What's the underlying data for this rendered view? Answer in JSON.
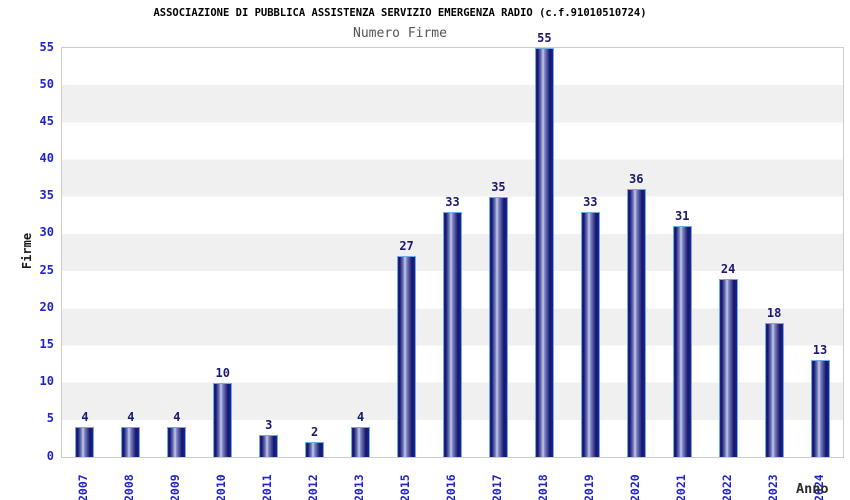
{
  "chart_data": {
    "type": "bar",
    "title": "ASSOCIAZIONE DI PUBBLICA ASSISTENZA SERVIZIO EMERGENZA RADIO (c.f.91010510724)",
    "subtitle": "Numero Firme",
    "xlabel": "Anno",
    "ylabel": "Firme",
    "categories": [
      "2007",
      "2008",
      "2009",
      "2010",
      "2011",
      "2012",
      "2013",
      "2015",
      "2016",
      "2017",
      "2018",
      "2019",
      "2020",
      "2021",
      "2022",
      "2023",
      "2024"
    ],
    "values": [
      4,
      4,
      4,
      10,
      3,
      2,
      4,
      27,
      33,
      35,
      55,
      33,
      36,
      31,
      24,
      18,
      13
    ],
    "y_ticks": [
      0,
      5,
      10,
      15,
      20,
      25,
      30,
      35,
      40,
      45,
      50,
      55
    ],
    "ylim": [
      0,
      55
    ],
    "grid": "horizontal-bands",
    "legend": "none",
    "colors": {
      "tick_labels": "#2222cc",
      "value_labels": "#191970",
      "bar_dark": "#23238c",
      "bar_darkest": "#15156e",
      "bar_highlight": "#c6cbe9",
      "bar_border": "#6babec",
      "band_gray": "#f0f0f0",
      "band_white": "#ffffff",
      "plot_border": "#cccccc",
      "title_color": "#000000",
      "subtitle_color": "#555555"
    }
  }
}
